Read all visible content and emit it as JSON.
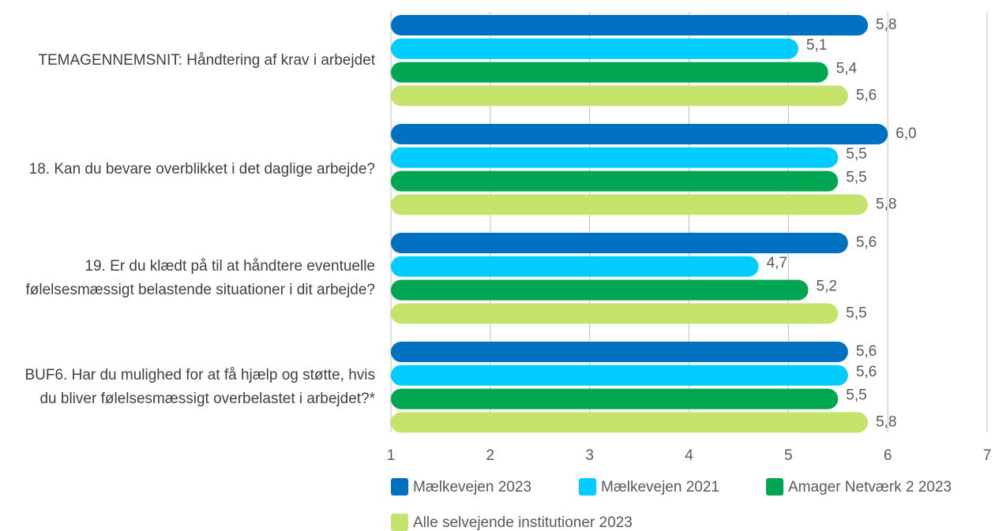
{
  "chart_data": {
    "type": "hbar",
    "categories": [
      "TEMAGENNEMSNIT: Håndtering af krav i arbejdet",
      "18. Kan du bevare overblikket i det daglige arbejde?",
      "19. Er du klædt på til at håndtere eventuelle følelsesmæssigt belastende situationer i dit arbejde?",
      "BUF6. Har du mulighed for at få hjælp og støtte, hvis du bliver følelsesmæssigt overbelastet i arbejdet?*"
    ],
    "series": [
      {
        "name": "Mælkevejen 2023",
        "color": "#0070c0",
        "values": [
          5.8,
          6.0,
          5.6,
          5.6
        ],
        "value_labels": [
          "5,8",
          "6,0",
          "5,6",
          "5,6"
        ]
      },
      {
        "name": "Mælkevejen 2021",
        "color": "#00ccff",
        "values": [
          5.1,
          5.5,
          4.7,
          5.6
        ],
        "value_labels": [
          "5,1",
          "5,5",
          "4,7",
          "5,6"
        ]
      },
      {
        "name": "Amager Netværk 2 2023",
        "color": "#00a651",
        "values": [
          5.4,
          5.5,
          5.2,
          5.5
        ],
        "value_labels": [
          "5,4",
          "5,5",
          "5,2",
          "5,5"
        ]
      },
      {
        "name": "Alle selvejende institutioner 2023",
        "color": "#c5e26a",
        "values": [
          5.6,
          5.8,
          5.5,
          5.8
        ],
        "value_labels": [
          "5,6",
          "5,8",
          "5,5",
          "5,8"
        ]
      }
    ],
    "xlim": [
      1,
      7
    ],
    "xticks": [
      1,
      2,
      3,
      4,
      5,
      6,
      7
    ],
    "grid": true
  }
}
